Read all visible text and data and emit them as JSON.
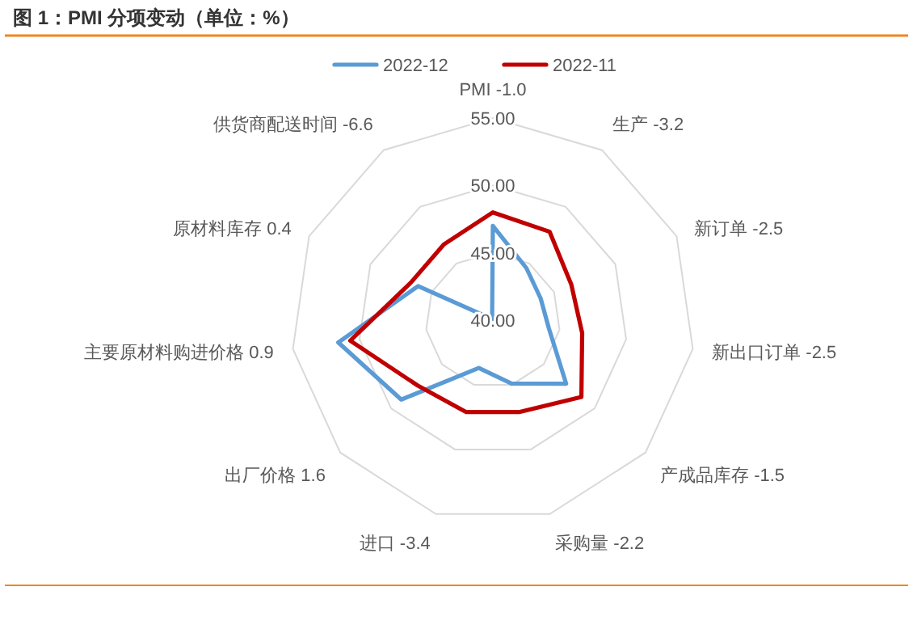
{
  "chart_data": {
    "type": "radar",
    "title": "图 1：PMI 分项变动（单位：%）",
    "categories": [
      "PMI -1.0",
      "生产 -3.2",
      "新订单 -2.5",
      "新出口订单 -2.5",
      "产成品库存 -1.5",
      "采购量 -2.2",
      "进口 -3.4",
      "出厂价格 1.6",
      "主要原材料购进价格 0.9",
      "原材料库存 0.4",
      "供货商配送时间 -6.6"
    ],
    "series": [
      {
        "name": "2022-12",
        "color": "#5b9bd5",
        "values": [
          47.0,
          44.6,
          43.9,
          44.2,
          47.2,
          44.9,
          43.7,
          49.0,
          51.6,
          46.1,
          40.1
        ]
      },
      {
        "name": "2022-11",
        "color": "#c00000",
        "values": [
          48.0,
          47.8,
          46.4,
          46.7,
          48.7,
          47.1,
          47.1,
          47.4,
          50.7,
          46.7,
          46.7
        ]
      }
    ],
    "ylim": [
      40,
      55
    ],
    "yticks": [
      {
        "value": 40,
        "label": "40.00"
      },
      {
        "value": 45,
        "label": "45.00"
      },
      {
        "value": 50,
        "label": "50.00"
      },
      {
        "value": 55,
        "label": "55.00"
      }
    ],
    "grid": true,
    "legend": "top"
  }
}
